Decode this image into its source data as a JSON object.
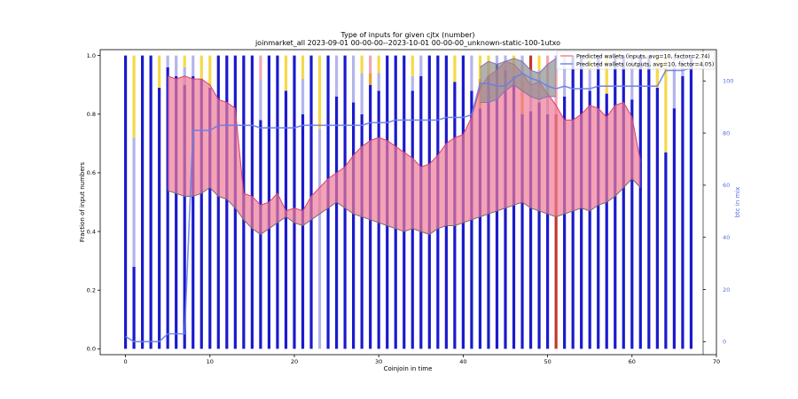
{
  "chart_data": {
    "type": "bar",
    "title": "Type of inputs for given cjtx (number)",
    "subtitle": "joinmarket_all 2023-09-01 00-00-00--2023-10-01 00-00-00_unknown-static-100-1utxo",
    "xlabel": "Coinjoin in time",
    "ylabel": "Fraction of input numbers",
    "y2label": "btc in mix",
    "xlim": [
      -3,
      70
    ],
    "ylim": [
      -0.02,
      1.02
    ],
    "y2lim": [
      -5,
      112
    ],
    "xticks": [
      0,
      10,
      20,
      30,
      40,
      50,
      60,
      70
    ],
    "yticks": [
      0.0,
      0.2,
      0.4,
      0.6,
      0.8,
      1.0
    ],
    "y2ticks": [
      0,
      20,
      40,
      60,
      80,
      100
    ],
    "legend": {
      "position": "top-right",
      "entries": [
        {
          "label": "Predicted wallets (inputs, avg=10, factor=2.74)",
          "color": "#f08080"
        },
        {
          "label": "Predicted wallets (outputs, avg=10, factor=4.05)",
          "color": "#6a7ee8"
        }
      ]
    },
    "colors": {
      "bar_main": "#1a1acd",
      "bar_light": "#b4b4ee",
      "bar_yellow": "#f5d94a",
      "bar_pink": "#f4a6b4",
      "bar_orange": "#e8a030",
      "bar_red": "#c0392b",
      "fill_inputs": "#f07a96",
      "fill_outputs": "#909090",
      "line_btc": "#6a7ee8"
    },
    "bars": [
      {
        "x": 0,
        "segments": [
          [
            1.0,
            "main"
          ]
        ]
      },
      {
        "x": 1,
        "segments": [
          [
            0.28,
            "main"
          ],
          [
            0.44,
            "light"
          ],
          [
            0.28,
            "yellow"
          ]
        ]
      },
      {
        "x": 2,
        "segments": [
          [
            1.0,
            "main"
          ]
        ]
      },
      {
        "x": 3,
        "segments": [
          [
            1.0,
            "main"
          ]
        ]
      },
      {
        "x": 4,
        "segments": [
          [
            0.89,
            "main"
          ],
          [
            0.11,
            "yellow"
          ]
        ]
      },
      {
        "x": 5,
        "segments": [
          [
            0.96,
            "main"
          ],
          [
            0.04,
            "light"
          ]
        ]
      },
      {
        "x": 6,
        "segments": [
          [
            0.93,
            "main"
          ],
          [
            0.07,
            "light"
          ]
        ]
      },
      {
        "x": 7,
        "segments": [
          [
            0.9,
            "main"
          ],
          [
            0.06,
            "light"
          ],
          [
            0.04,
            "yellow"
          ]
        ]
      },
      {
        "x": 8,
        "segments": [
          [
            0.93,
            "main"
          ],
          [
            0.07,
            "light"
          ]
        ]
      },
      {
        "x": 9,
        "segments": [
          [
            0.92,
            "main"
          ],
          [
            0.08,
            "yellow"
          ]
        ]
      },
      {
        "x": 10,
        "segments": [
          [
            0.89,
            "main"
          ],
          [
            0.11,
            "yellow"
          ]
        ]
      },
      {
        "x": 11,
        "segments": [
          [
            1.0,
            "main"
          ]
        ]
      },
      {
        "x": 12,
        "segments": [
          [
            1.0,
            "main"
          ]
        ]
      },
      {
        "x": 13,
        "segments": [
          [
            1.0,
            "main"
          ]
        ]
      },
      {
        "x": 14,
        "segments": [
          [
            1.0,
            "main"
          ]
        ]
      },
      {
        "x": 15,
        "segments": [
          [
            1.0,
            "main"
          ]
        ]
      },
      {
        "x": 16,
        "segments": [
          [
            0.78,
            "main"
          ],
          [
            0.14,
            "light"
          ],
          [
            0.08,
            "pink"
          ]
        ]
      },
      {
        "x": 17,
        "segments": [
          [
            1.0,
            "main"
          ]
        ]
      },
      {
        "x": 18,
        "segments": [
          [
            1.0,
            "main"
          ]
        ]
      },
      {
        "x": 19,
        "segments": [
          [
            0.88,
            "main"
          ],
          [
            0.12,
            "yellow"
          ]
        ]
      },
      {
        "x": 20,
        "segments": [
          [
            1.0,
            "main"
          ]
        ]
      },
      {
        "x": 21,
        "segments": [
          [
            0.8,
            "main"
          ],
          [
            0.12,
            "light"
          ],
          [
            0.08,
            "yellow"
          ]
        ]
      },
      {
        "x": 22,
        "segments": [
          [
            1.0,
            "main"
          ]
        ]
      },
      {
        "x": 23,
        "segments": [
          [
            0.0,
            "main"
          ],
          [
            0.75,
            "light"
          ],
          [
            0.25,
            "yellow"
          ]
        ]
      },
      {
        "x": 24,
        "segments": [
          [
            1.0,
            "main"
          ]
        ]
      },
      {
        "x": 25,
        "segments": [
          [
            0.86,
            "main"
          ],
          [
            0.14,
            "light"
          ]
        ]
      },
      {
        "x": 26,
        "segments": [
          [
            1.0,
            "main"
          ]
        ]
      },
      {
        "x": 27,
        "segments": [
          [
            0.84,
            "main"
          ],
          [
            0.16,
            "light"
          ]
        ]
      },
      {
        "x": 28,
        "segments": [
          [
            0.8,
            "main"
          ],
          [
            0.14,
            "light"
          ],
          [
            0.06,
            "yellow"
          ]
        ]
      },
      {
        "x": 29,
        "segments": [
          [
            0.9,
            "main"
          ],
          [
            0.04,
            "orange"
          ],
          [
            0.06,
            "pink"
          ]
        ]
      },
      {
        "x": 30,
        "segments": [
          [
            0.88,
            "main"
          ],
          [
            0.06,
            "light"
          ],
          [
            0.06,
            "yellow"
          ]
        ]
      },
      {
        "x": 31,
        "segments": [
          [
            1.0,
            "main"
          ]
        ]
      },
      {
        "x": 32,
        "segments": [
          [
            1.0,
            "main"
          ]
        ]
      },
      {
        "x": 33,
        "segments": [
          [
            1.0,
            "main"
          ]
        ]
      },
      {
        "x": 34,
        "segments": [
          [
            0.88,
            "main"
          ],
          [
            0.05,
            "light"
          ],
          [
            0.07,
            "yellow"
          ]
        ]
      },
      {
        "x": 35,
        "segments": [
          [
            0.93,
            "main"
          ],
          [
            0.07,
            "light"
          ]
        ]
      },
      {
        "x": 36,
        "segments": [
          [
            1.0,
            "main"
          ]
        ]
      },
      {
        "x": 37,
        "segments": [
          [
            1.0,
            "main"
          ]
        ]
      },
      {
        "x": 38,
        "segments": [
          [
            1.0,
            "main"
          ]
        ]
      },
      {
        "x": 39,
        "segments": [
          [
            0.91,
            "main"
          ],
          [
            0.09,
            "yellow"
          ]
        ]
      },
      {
        "x": 40,
        "segments": [
          [
            1.0,
            "main"
          ]
        ]
      },
      {
        "x": 41,
        "segments": [
          [
            0.88,
            "main"
          ],
          [
            0.12,
            "light"
          ]
        ]
      },
      {
        "x": 42,
        "segments": [
          [
            0.82,
            "main"
          ],
          [
            0.1,
            "orange"
          ],
          [
            0.08,
            "yellow"
          ]
        ]
      },
      {
        "x": 43,
        "segments": [
          [
            0.93,
            "main"
          ],
          [
            0.07,
            "yellow"
          ]
        ]
      },
      {
        "x": 44,
        "segments": [
          [
            0.97,
            "main"
          ],
          [
            0.03,
            "light"
          ]
        ]
      },
      {
        "x": 45,
        "segments": [
          [
            0.95,
            "main"
          ],
          [
            0.05,
            "light"
          ]
        ]
      },
      {
        "x": 46,
        "segments": [
          [
            0.93,
            "main"
          ],
          [
            0.07,
            "yellow"
          ]
        ]
      },
      {
        "x": 47,
        "segments": [
          [
            0.8,
            "main"
          ],
          [
            0.12,
            "orange"
          ],
          [
            0.08,
            "light"
          ]
        ]
      },
      {
        "x": 48,
        "segments": [
          [
            0.81,
            "main"
          ],
          [
            0.14,
            "light"
          ],
          [
            0.05,
            "red"
          ]
        ]
      },
      {
        "x": 49,
        "segments": [
          [
            0.84,
            "main"
          ],
          [
            0.11,
            "light"
          ],
          [
            0.05,
            "yellow"
          ]
        ]
      },
      {
        "x": 50,
        "segments": [
          [
            0.8,
            "main"
          ],
          [
            0.12,
            "light"
          ],
          [
            0.08,
            "pink"
          ]
        ]
      },
      {
        "x": 51,
        "segments": [
          [
            0.8,
            "red"
          ],
          [
            0.14,
            "pink"
          ],
          [
            0.06,
            "light"
          ]
        ]
      },
      {
        "x": 52,
        "segments": [
          [
            0.86,
            "main"
          ],
          [
            0.14,
            "light"
          ]
        ]
      },
      {
        "x": 53,
        "segments": [
          [
            1.0,
            "main"
          ]
        ]
      },
      {
        "x": 54,
        "segments": [
          [
            1.0,
            "main"
          ]
        ]
      },
      {
        "x": 55,
        "segments": [
          [
            0.88,
            "main"
          ],
          [
            0.07,
            "light"
          ],
          [
            0.05,
            "yellow"
          ]
        ]
      },
      {
        "x": 56,
        "segments": [
          [
            1.0,
            "main"
          ]
        ]
      },
      {
        "x": 57,
        "segments": [
          [
            0.87,
            "main"
          ],
          [
            0.13,
            "yellow"
          ]
        ]
      },
      {
        "x": 58,
        "segments": [
          [
            1.0,
            "main"
          ]
        ]
      },
      {
        "x": 59,
        "segments": [
          [
            1.0,
            "main"
          ]
        ]
      },
      {
        "x": 60,
        "segments": [
          [
            0.85,
            "main"
          ],
          [
            0.15,
            "light"
          ]
        ]
      },
      {
        "x": 61,
        "segments": [
          [
            1.0,
            "main"
          ]
        ]
      },
      {
        "x": 62,
        "segments": [
          [
            1.0,
            "main"
          ]
        ]
      },
      {
        "x": 63,
        "segments": [
          [
            0.89,
            "main"
          ],
          [
            0.11,
            "yellow"
          ]
        ]
      },
      {
        "x": 64,
        "segments": [
          [
            0.67,
            "main"
          ],
          [
            0.33,
            "yellow"
          ]
        ]
      },
      {
        "x": 65,
        "segments": [
          [
            0.82,
            "main"
          ],
          [
            0.18,
            "light"
          ]
        ]
      },
      {
        "x": 66,
        "segments": [
          [
            0.93,
            "main"
          ],
          [
            0.07,
            "light"
          ]
        ]
      },
      {
        "x": 67,
        "segments": [
          [
            1.0,
            "main"
          ]
        ]
      }
    ],
    "inputs_band": {
      "x": [
        5,
        6,
        7,
        8,
        9,
        10,
        11,
        12,
        13,
        14,
        15,
        16,
        17,
        18,
        19,
        20,
        21,
        22,
        23,
        24,
        25,
        26,
        27,
        28,
        29,
        30,
        31,
        32,
        33,
        34,
        35,
        36,
        37,
        38,
        39,
        40,
        41,
        42,
        43,
        44,
        45,
        46,
        47,
        48,
        49,
        50,
        51,
        52,
        53,
        54,
        55,
        56,
        57,
        58,
        59,
        60,
        61
      ],
      "lower": [
        0.54,
        0.53,
        0.52,
        0.52,
        0.53,
        0.55,
        0.52,
        0.51,
        0.48,
        0.44,
        0.41,
        0.39,
        0.41,
        0.43,
        0.45,
        0.43,
        0.42,
        0.44,
        0.46,
        0.48,
        0.5,
        0.48,
        0.46,
        0.45,
        0.44,
        0.43,
        0.42,
        0.41,
        0.4,
        0.41,
        0.4,
        0.39,
        0.41,
        0.42,
        0.42,
        0.43,
        0.44,
        0.45,
        0.46,
        0.47,
        0.48,
        0.49,
        0.5,
        0.48,
        0.47,
        0.46,
        0.45,
        0.46,
        0.47,
        0.48,
        0.47,
        0.49,
        0.5,
        0.52,
        0.55,
        0.58,
        0.55
      ],
      "upper": [
        0.93,
        0.92,
        0.93,
        0.92,
        0.92,
        0.9,
        0.85,
        0.84,
        0.82,
        0.53,
        0.52,
        0.49,
        0.5,
        0.53,
        0.47,
        0.48,
        0.47,
        0.52,
        0.55,
        0.58,
        0.6,
        0.62,
        0.66,
        0.69,
        0.71,
        0.72,
        0.71,
        0.69,
        0.67,
        0.65,
        0.62,
        0.63,
        0.66,
        0.7,
        0.72,
        0.73,
        0.79,
        0.89,
        0.93,
        0.95,
        0.98,
        0.97,
        0.94,
        0.9,
        0.91,
        0.87,
        0.83,
        0.78,
        0.78,
        0.8,
        0.83,
        0.82,
        0.79,
        0.83,
        0.84,
        0.79,
        0.64
      ]
    },
    "outputs_band": {
      "x": [
        42,
        43,
        44,
        45,
        46,
        47,
        48,
        49,
        50,
        51
      ],
      "lower": [
        0.84,
        0.84,
        0.85,
        0.88,
        0.9,
        0.88,
        0.86,
        0.85,
        0.86,
        0.86
      ],
      "upper": [
        0.96,
        0.98,
        0.97,
        0.98,
        0.99,
        0.98,
        0.95,
        0.94,
        0.97,
        0.99
      ]
    },
    "btc_in_mix": {
      "x": [
        0,
        1,
        2,
        3,
        4,
        5,
        6,
        7,
        8,
        9,
        10,
        11,
        12,
        13,
        14,
        15,
        16,
        17,
        18,
        19,
        20,
        21,
        22,
        23,
        24,
        25,
        26,
        27,
        28,
        29,
        30,
        31,
        32,
        33,
        34,
        35,
        36,
        37,
        38,
        39,
        40,
        41,
        42,
        43,
        44,
        45,
        46,
        47,
        48,
        49,
        50,
        51,
        52,
        53,
        54,
        55,
        56,
        57,
        58,
        59,
        60,
        61,
        62,
        63,
        64,
        65,
        66,
        67
      ],
      "y": [
        2,
        0,
        0,
        0,
        0,
        3,
        3,
        3,
        81,
        81,
        81,
        83,
        83,
        83,
        83,
        83,
        82,
        82,
        82,
        82,
        82,
        83,
        83,
        83,
        83,
        83,
        83,
        83,
        83,
        84,
        84,
        84,
        85,
        85,
        85,
        85,
        85,
        85,
        86,
        86,
        86,
        87,
        99,
        99,
        98,
        98,
        101,
        103,
        101,
        100,
        98,
        97,
        98,
        97,
        97,
        97,
        98,
        98,
        98,
        98,
        98,
        98,
        98,
        98,
        104,
        104,
        104,
        105
      ]
    }
  }
}
